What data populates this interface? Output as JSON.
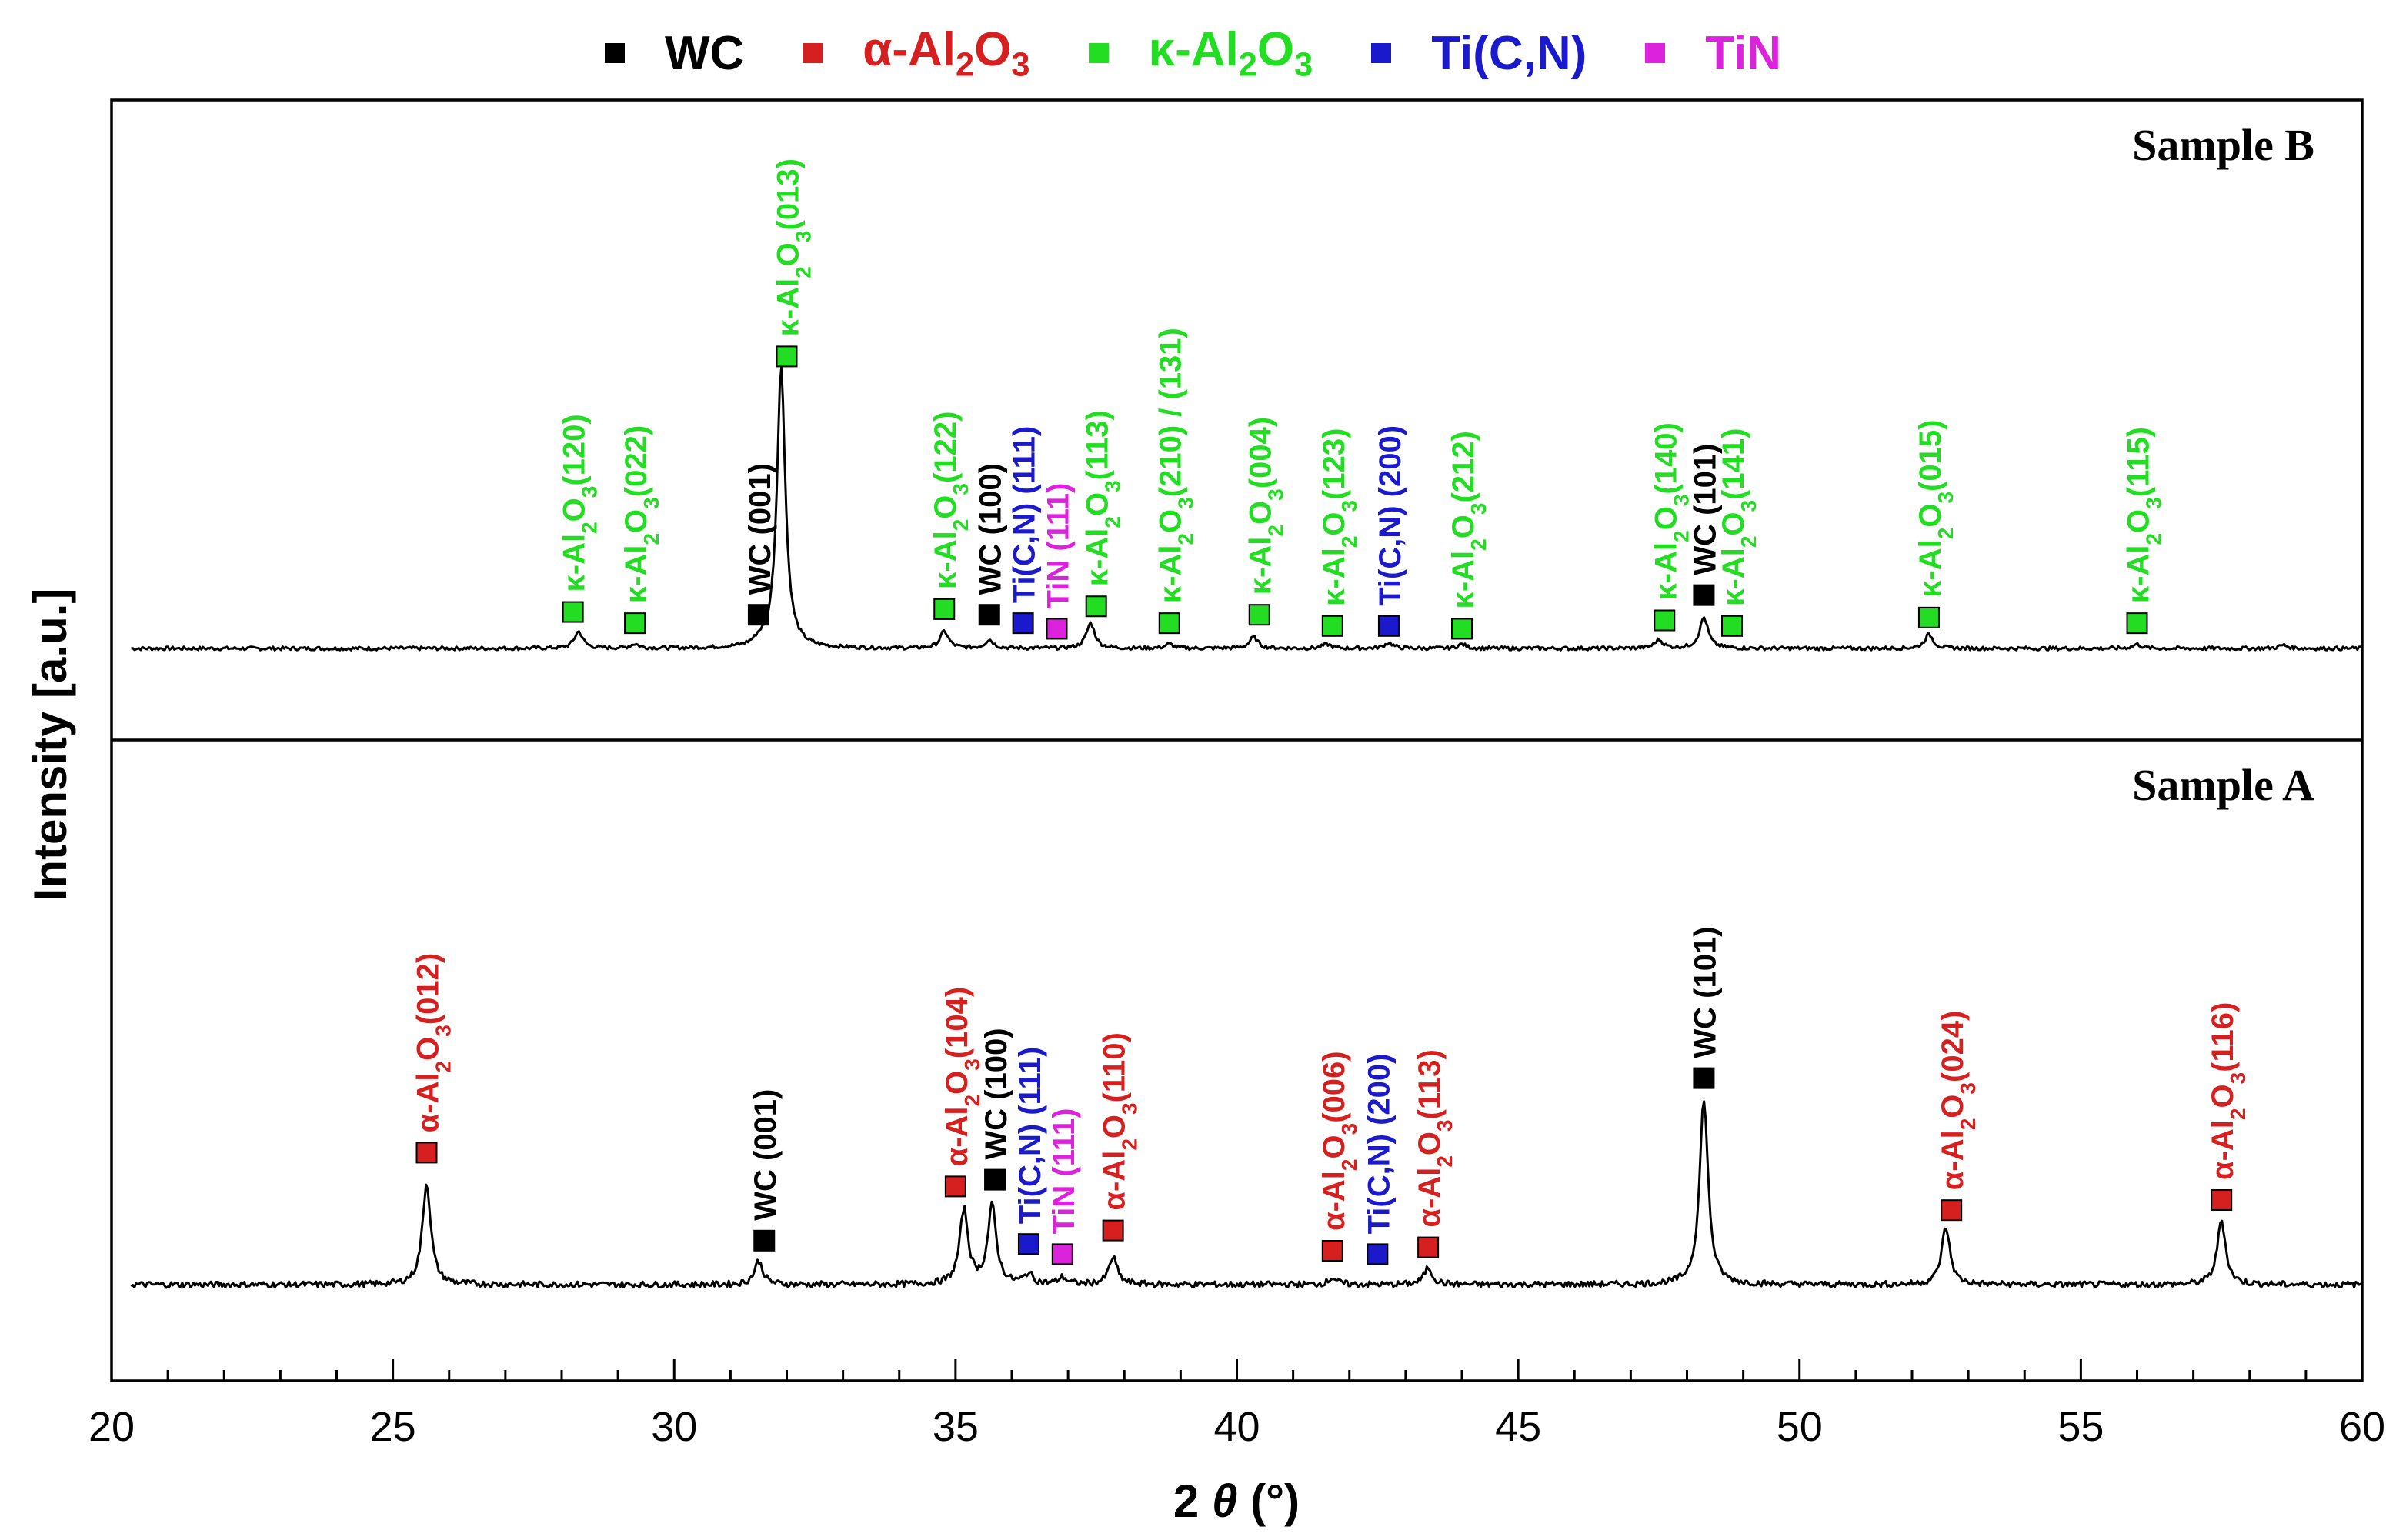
{
  "chart_data": {
    "type": "line",
    "title": "",
    "xlabel": "2 θ (°)",
    "ylabel": "Intensity [a.u.]",
    "xlim": [
      20,
      60
    ],
    "xticks": [
      20,
      25,
      30,
      35,
      40,
      45,
      50,
      55,
      60
    ],
    "legend": [
      {
        "phase": "WC",
        "label": "WC",
        "color": "#000000"
      },
      {
        "phase": "alpha",
        "label": "α-Al2O3",
        "color": "#d62020"
      },
      {
        "phase": "kappa",
        "label": "κ-Al2O3",
        "color": "#22dd22"
      },
      {
        "phase": "ticn",
        "label": "Ti(C,N)",
        "color": "#1a1acc"
      },
      {
        "phase": "tin",
        "label": "TiN",
        "color": "#dd22dd"
      }
    ],
    "phase_colors": {
      "WC": "#000000",
      "alpha": "#d62020",
      "kappa": "#22dd22",
      "ticn": "#1a1acc",
      "tin": "#dd22dd"
    },
    "panels": [
      {
        "name": "Sample B",
        "peaks": [
          {
            "x": 28.3,
            "h": 6
          },
          {
            "x": 29.3,
            "h": 1.5
          },
          {
            "x": 31.5,
            "h": 1.5
          },
          {
            "x": 31.9,
            "h": 100
          },
          {
            "x": 34.8,
            "h": 6
          },
          {
            "x": 35.6,
            "h": 3
          },
          {
            "x": 37.4,
            "h": 9
          },
          {
            "x": 38.8,
            "h": 1.5
          },
          {
            "x": 40.3,
            "h": 4
          },
          {
            "x": 41.6,
            "h": 1.5
          },
          {
            "x": 42.7,
            "h": 2
          },
          {
            "x": 44.0,
            "h": 1.5
          },
          {
            "x": 47.5,
            "h": 3
          },
          {
            "x": 48.3,
            "h": 11
          },
          {
            "x": 52.3,
            "h": 5
          },
          {
            "x": 56.0,
            "h": 1.5
          },
          {
            "x": 58.6,
            "h": 1.2
          }
        ],
        "labels": [
          {
            "x": 28.2,
            "y": 13,
            "text": "κ-Al₂O₃(120)",
            "phase": "kappa"
          },
          {
            "x": 29.3,
            "y": 9,
            "text": "κ-Al₂O₃(022)",
            "phase": "kappa"
          },
          {
            "x": 31.5,
            "y": 12,
            "text": "WC (001)",
            "phase": "WC"
          },
          {
            "x": 32.0,
            "y": 104,
            "text": "κ-Al₂O₃(013)",
            "phase": "kappa"
          },
          {
            "x": 34.8,
            "y": 14,
            "text": "κ-Al₂O₃(122)",
            "phase": "kappa"
          },
          {
            "x": 35.6,
            "y": 12,
            "text": "WC (100)",
            "phase": "WC"
          },
          {
            "x": 36.2,
            "y": 9,
            "text": "Ti(C,N) (111)",
            "phase": "ticn"
          },
          {
            "x": 36.8,
            "y": 7,
            "text": "TiN (111)",
            "phase": "tin"
          },
          {
            "x": 37.5,
            "y": 15,
            "text": "κ-Al₂O₃(113)",
            "phase": "kappa"
          },
          {
            "x": 38.8,
            "y": 9,
            "text": "κ-Al₂O₃(210) / (131)",
            "phase": "kappa"
          },
          {
            "x": 40.4,
            "y": 12,
            "text": "κ-Al₂O₃(004)",
            "phase": "kappa"
          },
          {
            "x": 41.7,
            "y": 8,
            "text": "κ-Al₂O₃(123)",
            "phase": "kappa"
          },
          {
            "x": 42.7,
            "y": 8,
            "text": "Ti(C,N) (200)",
            "phase": "ticn"
          },
          {
            "x": 44.0,
            "y": 7,
            "text": "κ-Al₂O₃(212)",
            "phase": "kappa"
          },
          {
            "x": 47.6,
            "y": 10,
            "text": "κ-Al₂O₃(140)",
            "phase": "kappa"
          },
          {
            "x": 48.3,
            "y": 19,
            "text": "WC (101)",
            "phase": "WC"
          },
          {
            "x": 48.8,
            "y": 8,
            "text": "κ-Al₂O₃(141)",
            "phase": "kappa"
          },
          {
            "x": 52.3,
            "y": 11,
            "text": "κ-Al₂O₃(015)",
            "phase": "kappa"
          },
          {
            "x": 56.0,
            "y": 9,
            "text": "κ-Al₂O₃(115)",
            "phase": "kappa"
          }
        ]
      },
      {
        "name": "Sample A",
        "peaks": [
          {
            "x": 25.6,
            "h": 30
          },
          {
            "x": 31.5,
            "h": 7
          },
          {
            "x": 35.15,
            "h": 22
          },
          {
            "x": 35.65,
            "h": 23
          },
          {
            "x": 36.3,
            "h": 3
          },
          {
            "x": 36.9,
            "h": 2
          },
          {
            "x": 37.8,
            "h": 8
          },
          {
            "x": 41.7,
            "h": 2
          },
          {
            "x": 43.4,
            "h": 5
          },
          {
            "x": 48.3,
            "h": 55
          },
          {
            "x": 52.6,
            "h": 17
          },
          {
            "x": 57.5,
            "h": 19
          }
        ],
        "labels": [
          {
            "x": 25.6,
            "y": 39,
            "text": "α-Al₂O₃(012)",
            "phase": "alpha"
          },
          {
            "x": 31.6,
            "y": 13,
            "text": "WC (001)",
            "phase": "WC"
          },
          {
            "x": 35.0,
            "y": 29,
            "text": "α-Al₂O₃(104)",
            "phase": "alpha"
          },
          {
            "x": 35.7,
            "y": 31,
            "text": "WC (100)",
            "phase": "WC"
          },
          {
            "x": 36.3,
            "y": 12,
            "text": "Ti(C,N) (111)",
            "phase": "ticn"
          },
          {
            "x": 36.9,
            "y": 9,
            "text": "TiN (111)",
            "phase": "tin"
          },
          {
            "x": 37.8,
            "y": 16,
            "text": "α-Al₂O₃(110)",
            "phase": "alpha"
          },
          {
            "x": 41.7,
            "y": 10,
            "text": "α-Al₂O₃(006)",
            "phase": "alpha"
          },
          {
            "x": 42.5,
            "y": 9,
            "text": "Ti(C,N) (200)",
            "phase": "ticn"
          },
          {
            "x": 43.4,
            "y": 11,
            "text": "α-Al₂O₃(113)",
            "phase": "alpha"
          },
          {
            "x": 48.3,
            "y": 61,
            "text": "WC (101)",
            "phase": "WC"
          },
          {
            "x": 52.7,
            "y": 22,
            "text": "α-Al₂O₃(024)",
            "phase": "alpha"
          },
          {
            "x": 57.5,
            "y": 25,
            "text": "α-Al₂O₃(116)",
            "phase": "alpha"
          }
        ]
      }
    ]
  }
}
